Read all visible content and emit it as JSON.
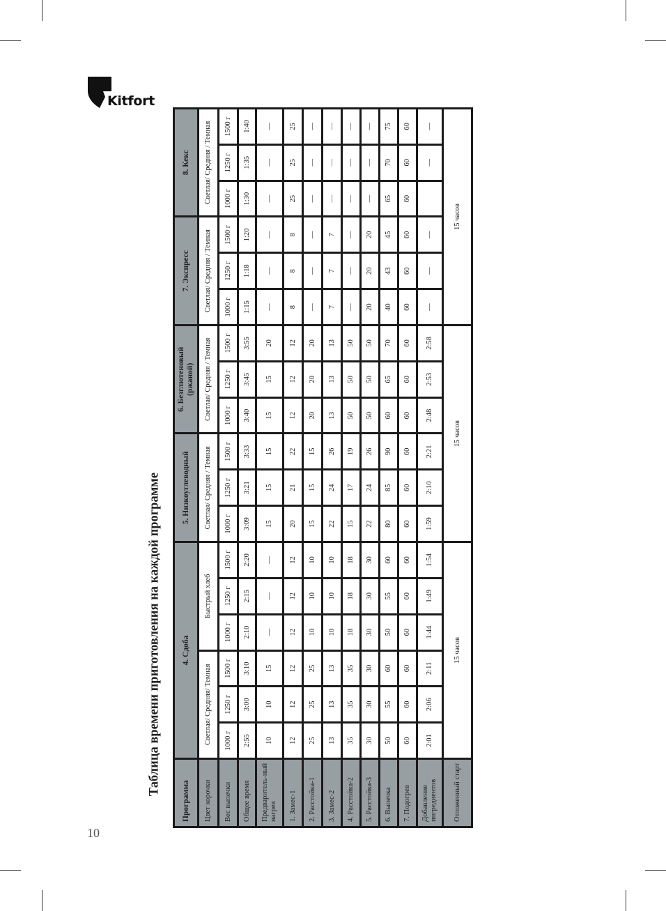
{
  "page": {
    "title": "Таблица времени приготовления на каждой программе",
    "page_number": "10",
    "brand": "Kitfort"
  },
  "colors": {
    "header_gray": "#989fa3",
    "border": "#1a1a1a"
  },
  "table": {
    "header_label": "Программа",
    "row_labels": [
      "Цвет корочки",
      "Вес выпечки",
      "Общее время",
      "Предваритель-ный нагрев",
      "1. Замес-1",
      "2. Расстойка-1",
      "3. Замес-2",
      "4. Расстойка-2",
      "5. Расстойка-3",
      "6. Выпечка",
      "7. Подогрев",
      "Добавление ингредиентов",
      "Отложенный старт"
    ],
    "programs": [
      {
        "name": "4. Сдоба",
        "groups": [
          {
            "crust": "Светлая/ Средняя/ Темная",
            "columns": [
              {
                "weight": "1000 г",
                "values": [
                  "2:55",
                  "10",
                  "12",
                  "25",
                  "13",
                  "35",
                  "30",
                  "50",
                  "60",
                  "2:01"
                ]
              },
              {
                "weight": "1250 г",
                "values": [
                  "3:00",
                  "10",
                  "12",
                  "25",
                  "13",
                  "35",
                  "30",
                  "55",
                  "60",
                  "2:06"
                ]
              },
              {
                "weight": "1500 г",
                "values": [
                  "3:10",
                  "15",
                  "12",
                  "25",
                  "13",
                  "35",
                  "30",
                  "60",
                  "60",
                  "2:11"
                ]
              }
            ]
          },
          {
            "crust": "Быстрый хлеб",
            "columns": [
              {
                "weight": "1000 г",
                "values": [
                  "2:10",
                  "—",
                  "12",
                  "10",
                  "10",
                  "18",
                  "30",
                  "50",
                  "60",
                  "1:44"
                ]
              },
              {
                "weight": "1250 г",
                "values": [
                  "2:15",
                  "—",
                  "12",
                  "10",
                  "10",
                  "18",
                  "30",
                  "55",
                  "60",
                  "1:49"
                ]
              },
              {
                "weight": "1500 г",
                "values": [
                  "2:20",
                  "—",
                  "12",
                  "10",
                  "10",
                  "18",
                  "30",
                  "60",
                  "60",
                  "1:54"
                ]
              }
            ]
          }
        ]
      },
      {
        "name": "5. Низкоуглеводный",
        "groups": [
          {
            "crust": "Светлая/ Средняя / Темная",
            "columns": [
              {
                "weight": "1000 г",
                "values": [
                  "3:09",
                  "15",
                  "20",
                  "15",
                  "22",
                  "15",
                  "22",
                  "80",
                  "60",
                  "1:59"
                ]
              },
              {
                "weight": "1250 г",
                "values": [
                  "3:21",
                  "15",
                  "21",
                  "15",
                  "24",
                  "17",
                  "24",
                  "85",
                  "60",
                  "2:10"
                ]
              },
              {
                "weight": "1500 г",
                "values": [
                  "3:33",
                  "15",
                  "22",
                  "15",
                  "26",
                  "19",
                  "26",
                  "90",
                  "60",
                  "2:21"
                ]
              }
            ]
          }
        ]
      },
      {
        "name": "6. Безглютеновый\n(ржаной)",
        "groups": [
          {
            "crust": "Светлая/ Средняя / Темная",
            "columns": [
              {
                "weight": "1000 г",
                "values": [
                  "3:40",
                  "15",
                  "12",
                  "20",
                  "13",
                  "50",
                  "50",
                  "60",
                  "60",
                  "2:48"
                ]
              },
              {
                "weight": "1250 г",
                "values": [
                  "3:45",
                  "15",
                  "12",
                  "20",
                  "13",
                  "50",
                  "50",
                  "65",
                  "60",
                  "2:53"
                ]
              },
              {
                "weight": "1500 г",
                "values": [
                  "3:55",
                  "20",
                  "12",
                  "20",
                  "13",
                  "50",
                  "50",
                  "70",
                  "60",
                  "2:58"
                ]
              }
            ]
          }
        ]
      },
      {
        "name": "7. Экспресс",
        "groups": [
          {
            "crust": "Светлая/ Средняя / Темная",
            "columns": [
              {
                "weight": "1000 г",
                "values": [
                  "1:15",
                  "—",
                  "8",
                  "—",
                  "7",
                  "—",
                  "20",
                  "40",
                  "60",
                  "—"
                ]
              },
              {
                "weight": "1250 г",
                "values": [
                  "1:18",
                  "—",
                  "8",
                  "—",
                  "7",
                  "—",
                  "20",
                  "43",
                  "60",
                  "—"
                ]
              },
              {
                "weight": "1500 г",
                "values": [
                  "1:20",
                  "—",
                  "8",
                  "—",
                  "7",
                  "—",
                  "20",
                  "45",
                  "60",
                  "—"
                ]
              }
            ]
          }
        ]
      },
      {
        "name": "8. Кекс",
        "groups": [
          {
            "crust": "Светлая/ Средняя / Темная",
            "columns": [
              {
                "weight": "1000 г",
                "values": [
                  "1:30",
                  "—",
                  "25",
                  "—",
                  "—",
                  "—",
                  "—",
                  "65",
                  "60",
                  ""
                ]
              },
              {
                "weight": "1250 г",
                "values": [
                  "1:35",
                  "—",
                  "25",
                  "—",
                  "—",
                  "—",
                  "—",
                  "70",
                  "60",
                  "—"
                ]
              },
              {
                "weight": "1500 г",
                "values": [
                  "1:40",
                  "—",
                  "25",
                  "—",
                  "—",
                  "—",
                  "—",
                  "75",
                  "60",
                  "—"
                ]
              }
            ]
          }
        ]
      }
    ],
    "delayed_start": [
      "15 часов",
      "15 часов",
      "15 часов"
    ]
  }
}
